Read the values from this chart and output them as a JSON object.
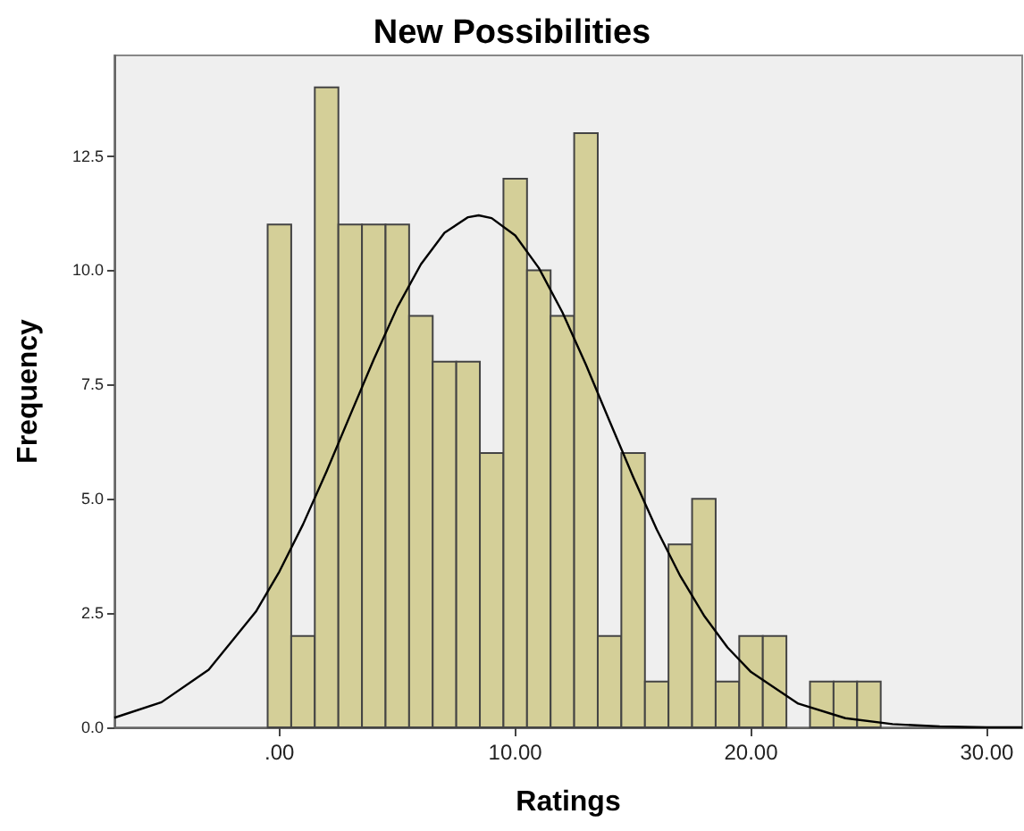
{
  "chart_data": {
    "type": "histogram",
    "title": "New Possibilities",
    "xlabel": "Ratings",
    "ylabel": "Frequency",
    "bins": [
      -0.5,
      0.5,
      1.5,
      2.5,
      3.5,
      4.5,
      5.5,
      6.5,
      7.5,
      8.5,
      9.5,
      10.5,
      11.5,
      12.5,
      13.5,
      14.5,
      15.5,
      16.5,
      17.5,
      18.5,
      19.5,
      20.5,
      21.5,
      22.5,
      23.5,
      24.5,
      25.5
    ],
    "series": [
      {
        "color": "#d4cf98",
        "values": [
          11,
          2,
          14,
          11,
          11,
          11,
          9,
          8,
          8,
          6,
          12,
          10,
          9,
          13,
          2,
          6,
          1,
          4,
          5,
          1,
          2,
          2,
          0,
          1,
          1,
          1
        ]
      },
      {
        "type": "line",
        "color": "#000000",
        "marker": "none",
        "x": [
          -7,
          -5,
          -3,
          -1,
          0,
          1,
          2,
          3,
          4,
          5,
          6,
          7,
          8,
          8.45,
          9,
          10,
          11,
          12,
          13,
          14,
          15,
          16,
          17,
          18,
          19,
          20,
          22,
          24,
          26,
          28,
          30,
          31.5
        ],
        "values": [
          0.21,
          0.55,
          1.26,
          2.53,
          3.41,
          4.44,
          5.6,
          6.83,
          8.05,
          9.19,
          10.13,
          10.82,
          11.16,
          11.2,
          11.14,
          10.76,
          10.05,
          9.08,
          7.93,
          6.7,
          5.48,
          4.33,
          3.31,
          2.45,
          1.75,
          1.21,
          0.52,
          0.2,
          0.07,
          0.02,
          0,
          0
        ]
      }
    ],
    "xlim": [
      -7,
      31.5
    ],
    "xticks": [
      {
        "value": 0,
        "label": ".00"
      },
      {
        "value": 10,
        "label": "10.00"
      },
      {
        "value": 20,
        "label": "20.00"
      },
      {
        "value": 30,
        "label": "30.00"
      }
    ],
    "ylim": [
      0,
      14.7
    ],
    "yticks": [
      {
        "value": 0,
        "label": "0.0"
      },
      {
        "value": 2.5,
        "label": "2.5"
      },
      {
        "value": 5,
        "label": "5.0"
      },
      {
        "value": 7.5,
        "label": "7.5"
      },
      {
        "value": 10,
        "label": "10.0"
      },
      {
        "value": 12.5,
        "label": "12.5"
      }
    ],
    "grid": false
  }
}
